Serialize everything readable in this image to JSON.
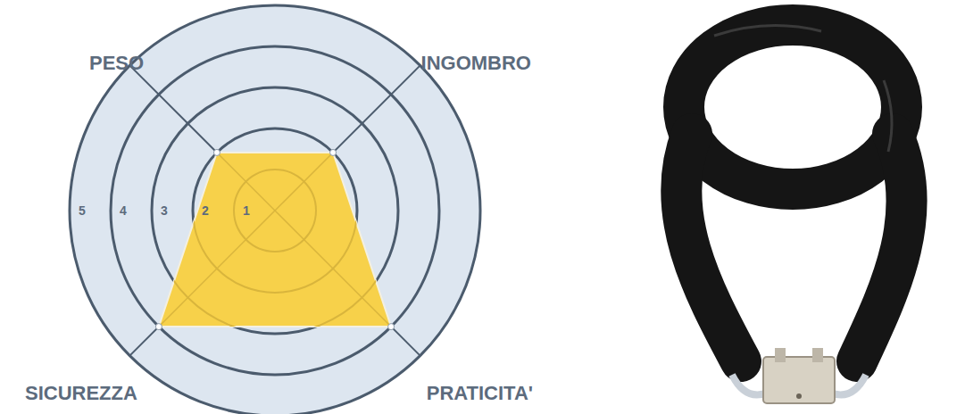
{
  "chart_data": {
    "type": "radar",
    "categories": [
      "PESO",
      "INGOMBRO",
      "PRATICITA'",
      "SICUREZZA"
    ],
    "values": [
      2,
      2,
      4,
      4
    ],
    "color": "#f7d14a",
    "ylim": [
      0,
      5
    ],
    "yticks": [
      1,
      2,
      3,
      4,
      5
    ],
    "grid": true
  }
}
